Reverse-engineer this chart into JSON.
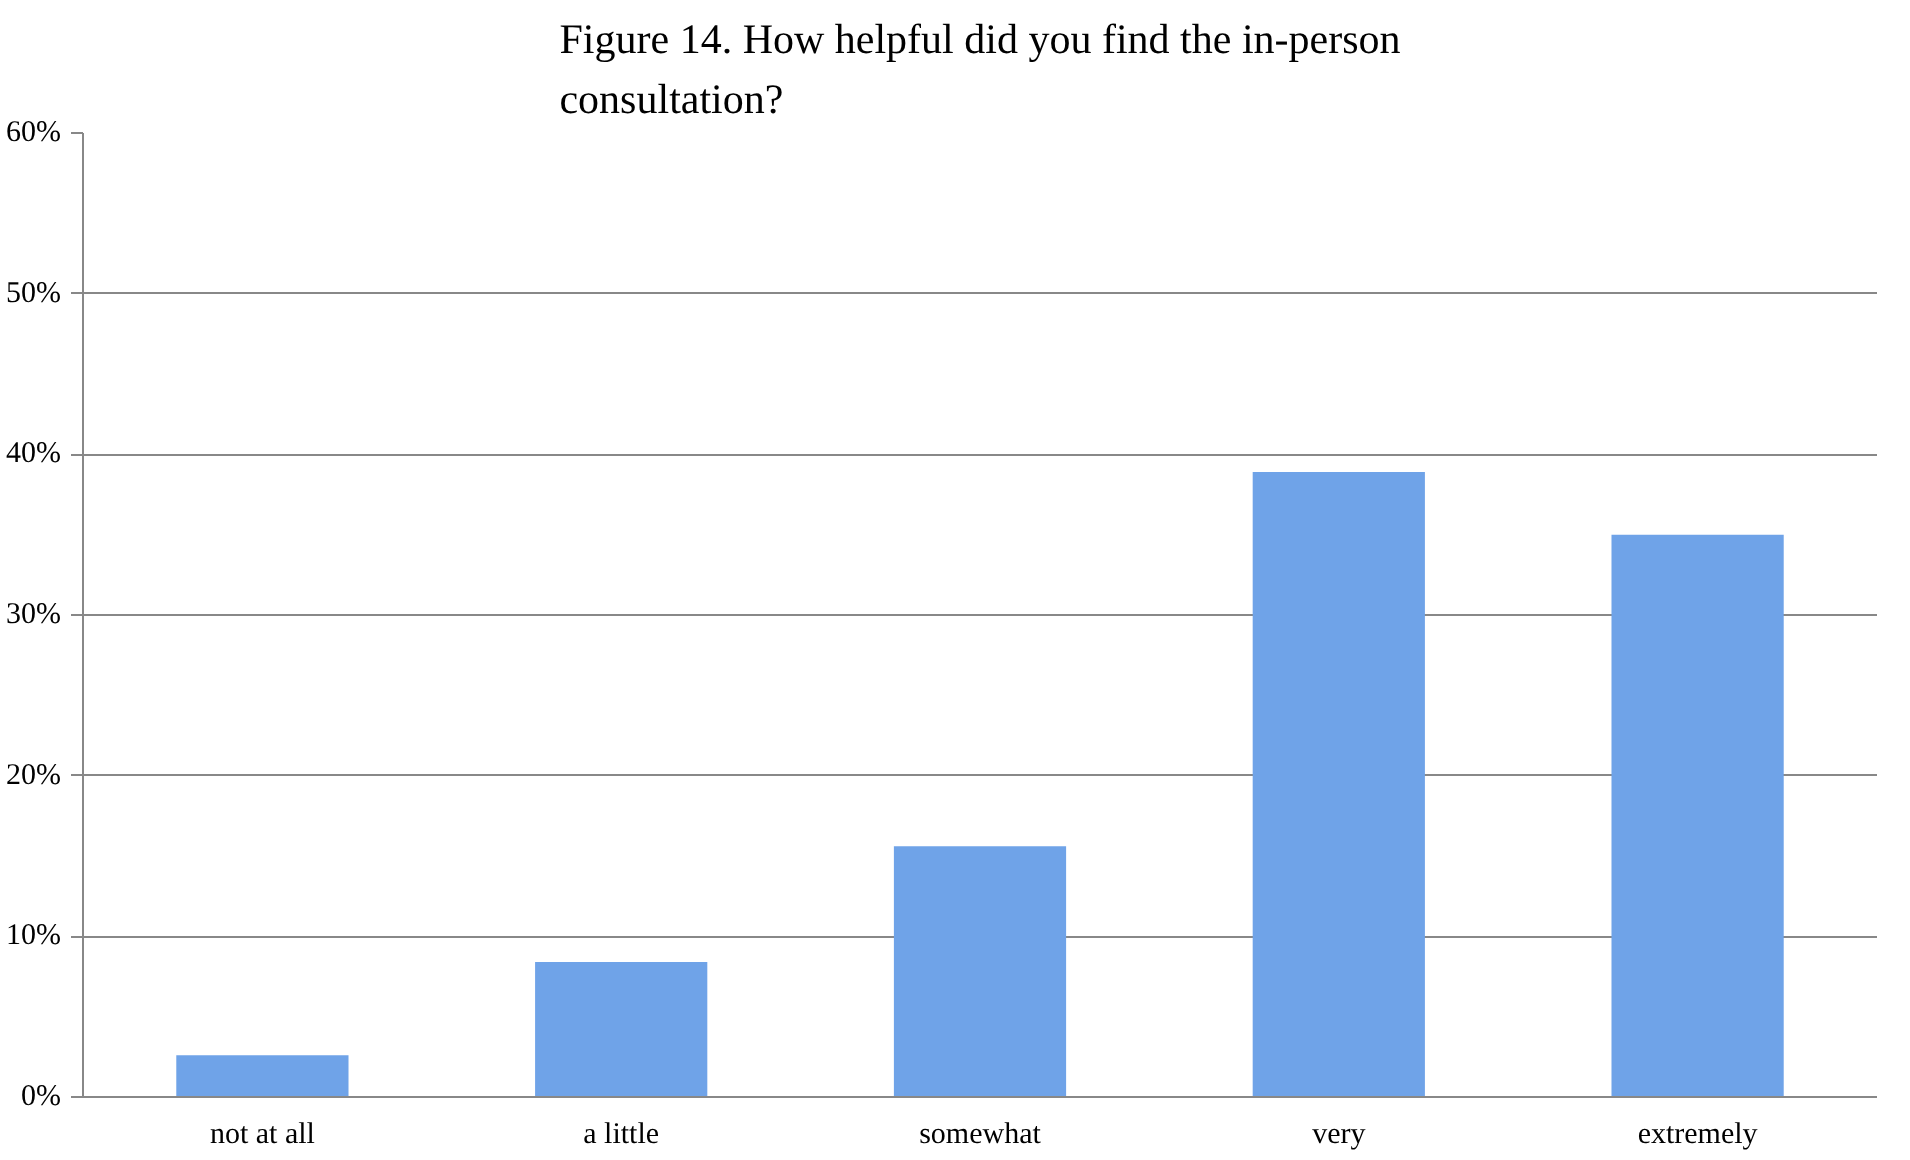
{
  "chart_data": {
    "type": "bar",
    "title": "Figure 14. How helpful did you find the in-person consultation?",
    "categories": [
      "not at all",
      "a little",
      "somewhat",
      "very",
      "extremely"
    ],
    "values": [
      2.6,
      8.4,
      15.6,
      38.9,
      35.0
    ],
    "color": "#6fa3e8",
    "ylim": [
      0,
      60
    ],
    "yticks": [
      {
        "value": 0,
        "label": "0%"
      },
      {
        "value": 10,
        "label": "10%"
      },
      {
        "value": 20,
        "label": "20%"
      },
      {
        "value": 30,
        "label": "30%"
      },
      {
        "value": 40,
        "label": "40%"
      },
      {
        "value": 50,
        "label": "50%"
      },
      {
        "value": 60,
        "label": "60%"
      }
    ],
    "grid": "y"
  }
}
